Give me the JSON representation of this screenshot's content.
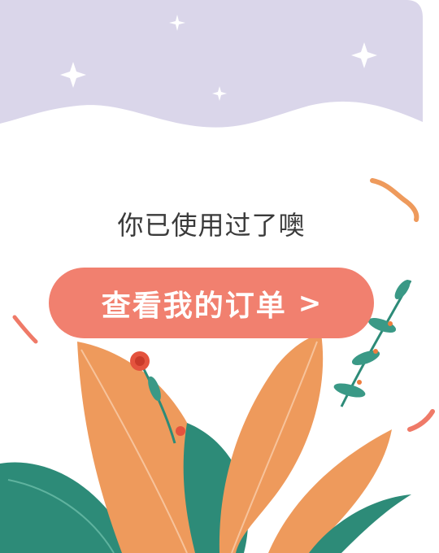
{
  "empty_state": {
    "message": "你已使用过了噢"
  },
  "cta": {
    "label": "查看我的订单",
    "chevron": ">",
    "chevron_icon": "chevron-right-icon"
  },
  "colors": {
    "sky": "#dad6ea",
    "accent": "#f1806f",
    "leaf_orange": "#ee9a5c",
    "leaf_green": "#2d8b78",
    "text": "#3a3a3a"
  }
}
